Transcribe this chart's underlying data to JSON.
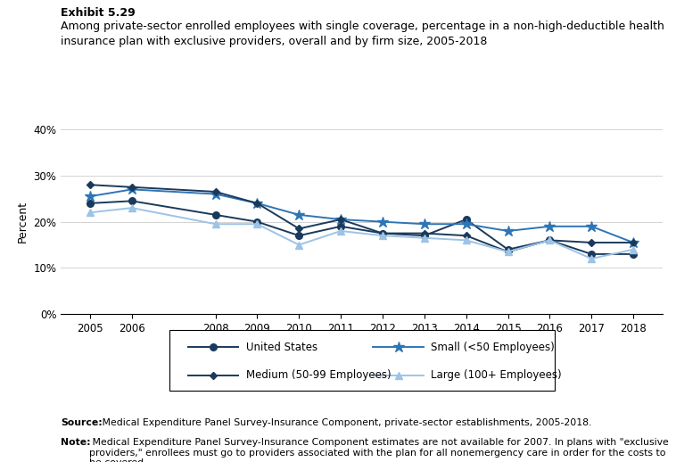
{
  "title_line1": "Exhibit 5.29",
  "title_line2": "Among private-sector enrolled employees with single coverage, percentage in a non-high-deductible health\ninsurance plan with exclusive providers, overall and by firm size, 2005-2018",
  "years": [
    2005,
    2006,
    2008,
    2009,
    2010,
    2011,
    2012,
    2013,
    2014,
    2015,
    2016,
    2017,
    2018
  ],
  "united_states": [
    24.0,
    24.5,
    21.5,
    20.0,
    17.0,
    19.0,
    17.5,
    17.0,
    20.5,
    14.0,
    16.0,
    13.0,
    13.0
  ],
  "small": [
    25.5,
    27.0,
    26.0,
    24.0,
    21.5,
    20.5,
    20.0,
    19.5,
    19.5,
    18.0,
    19.0,
    19.0,
    15.5
  ],
  "medium": [
    28.0,
    27.5,
    26.5,
    24.0,
    18.5,
    20.5,
    17.5,
    17.5,
    17.0,
    13.5,
    16.0,
    15.5,
    15.5
  ],
  "large": [
    22.0,
    23.0,
    19.5,
    19.5,
    15.0,
    18.0,
    17.0,
    16.5,
    16.0,
    13.5,
    16.0,
    12.0,
    14.0
  ],
  "color_us": "#1a3a5c",
  "color_small": "#2e75b6",
  "color_medium": "#1a3a5c",
  "color_large": "#9dc3e6",
  "ylim": [
    0,
    40
  ],
  "yticks": [
    0,
    10,
    20,
    30,
    40
  ],
  "source_bold": "Source:",
  "source_rest": " Medical Expenditure Panel Survey-Insurance Component, private-sector establishments, 2005-2018.",
  "note_bold": "Note:",
  "note_rest": " Medical Expenditure Panel Survey-Insurance Component estimates are not available for 2007. In plans with \"exclusive providers,\" enrollees must go to providers associated with the plan for all nonemergency care in order for the costs to be covered."
}
